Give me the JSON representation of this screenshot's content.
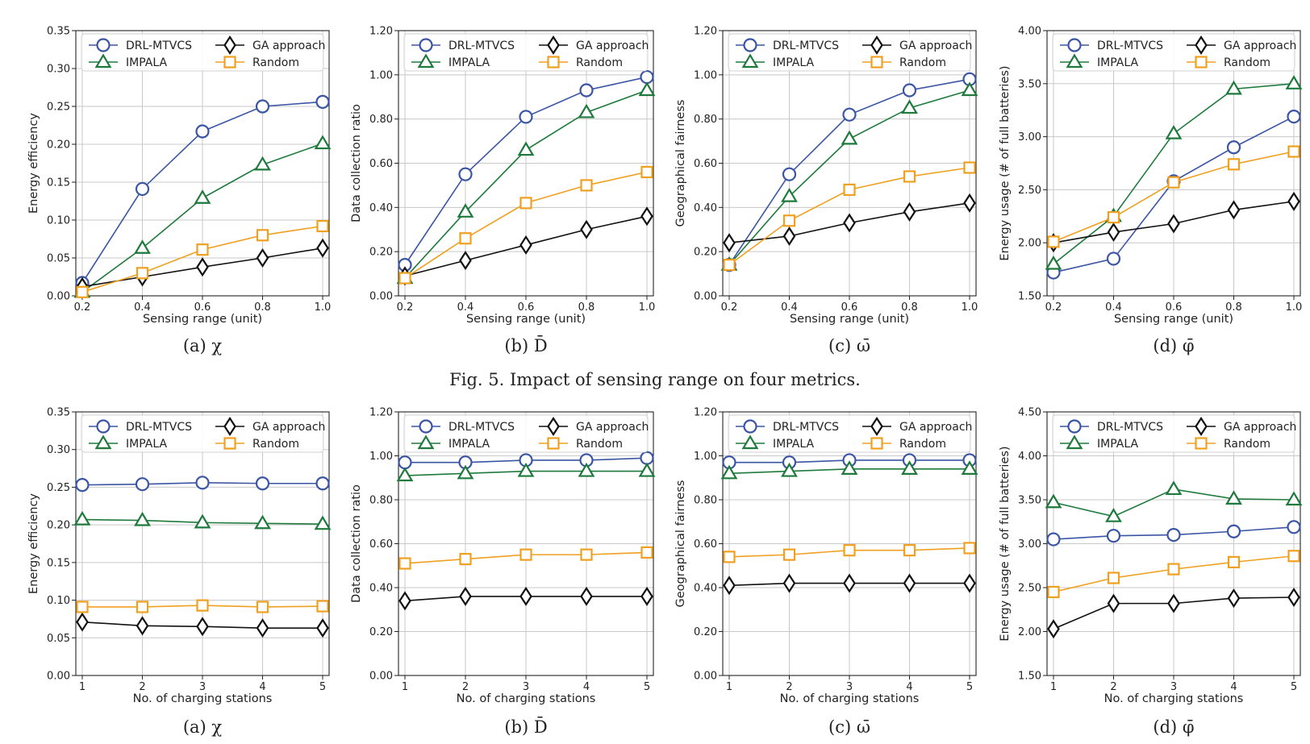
{
  "colors": {
    "DRL-MTVCS": "#3a55a4",
    "IMPALA": "#1e7a3c",
    "GA approach": "#111111",
    "Random": "#f0a020",
    "grid": "#c8c8c8"
  },
  "figure_caption": "Fig. 5.  Impact of sensing range on four metrics.",
  "chart_data": [
    {
      "type": "line",
      "subcaption": "(a) χ",
      "xlabel": "Sensing range (unit)",
      "ylabel": "Energy efficiency",
      "x": [
        "0.2",
        "0.4",
        "0.6",
        "0.8",
        "1.0"
      ],
      "ylim": [
        0,
        0.35
      ],
      "yticks": [
        "0.00",
        "0.05",
        "0.10",
        "0.15",
        "0.20",
        "0.25",
        "0.30",
        "0.35"
      ],
      "series": [
        {
          "name": "DRL-MTVCS",
          "marker": "circle",
          "values": [
            0.017,
            0.141,
            0.217,
            0.25,
            0.256
          ]
        },
        {
          "name": "IMPALA",
          "marker": "triangle",
          "values": [
            0.005,
            0.063,
            0.129,
            0.173,
            0.201
          ]
        },
        {
          "name": "GA approach",
          "marker": "diamond",
          "values": [
            0.012,
            0.025,
            0.038,
            0.05,
            0.063
          ]
        },
        {
          "name": "Random",
          "marker": "square",
          "values": [
            0.005,
            0.03,
            0.061,
            0.08,
            0.092
          ]
        }
      ]
    },
    {
      "type": "line",
      "subcaption": "(b) D̄",
      "xlabel": "Sensing range (unit)",
      "ylabel": "Data collection ratio",
      "x": [
        "0.2",
        "0.4",
        "0.6",
        "0.8",
        "1.0"
      ],
      "ylim": [
        0,
        1.2
      ],
      "yticks": [
        "0.00",
        "0.20",
        "0.40",
        "0.60",
        "0.80",
        "1.00",
        "1.20"
      ],
      "series": [
        {
          "name": "DRL-MTVCS",
          "marker": "circle",
          "values": [
            0.14,
            0.55,
            0.81,
            0.93,
            0.99
          ]
        },
        {
          "name": "IMPALA",
          "marker": "triangle",
          "values": [
            0.08,
            0.38,
            0.66,
            0.83,
            0.93
          ]
        },
        {
          "name": "GA approach",
          "marker": "diamond",
          "values": [
            0.09,
            0.16,
            0.23,
            0.3,
            0.36
          ]
        },
        {
          "name": "Random",
          "marker": "square",
          "values": [
            0.08,
            0.26,
            0.42,
            0.5,
            0.56
          ]
        }
      ]
    },
    {
      "type": "line",
      "subcaption": "(c) ω̄",
      "xlabel": "Sensing range (unit)",
      "ylabel": "Geographical fairness",
      "x": [
        "0.2",
        "0.4",
        "0.6",
        "0.8",
        "1.0"
      ],
      "ylim": [
        0,
        1.2
      ],
      "yticks": [
        "0.00",
        "0.20",
        "0.40",
        "0.60",
        "0.80",
        "1.00",
        "1.20"
      ],
      "series": [
        {
          "name": "DRL-MTVCS",
          "marker": "circle",
          "values": [
            0.14,
            0.55,
            0.82,
            0.93,
            0.98
          ]
        },
        {
          "name": "IMPALA",
          "marker": "triangle",
          "values": [
            0.14,
            0.45,
            0.71,
            0.85,
            0.93
          ]
        },
        {
          "name": "GA approach",
          "marker": "diamond",
          "values": [
            0.24,
            0.27,
            0.33,
            0.38,
            0.42
          ]
        },
        {
          "name": "Random",
          "marker": "square",
          "values": [
            0.14,
            0.34,
            0.48,
            0.54,
            0.58
          ]
        }
      ]
    },
    {
      "type": "line",
      "subcaption": "(d) φ̄",
      "xlabel": "Sensing range (unit)",
      "ylabel": "Energy usage (# of full batteries)",
      "x": [
        "0.2",
        "0.4",
        "0.6",
        "0.8",
        "1.0"
      ],
      "ylim": [
        1.5,
        4.0
      ],
      "yticks": [
        "1.50",
        "2.00",
        "2.50",
        "3.00",
        "3.50",
        "4.00"
      ],
      "series": [
        {
          "name": "DRL-MTVCS",
          "marker": "circle",
          "values": [
            1.72,
            1.85,
            2.58,
            2.9,
            3.19
          ]
        },
        {
          "name": "IMPALA",
          "marker": "triangle",
          "values": [
            1.8,
            2.25,
            3.03,
            3.45,
            3.5
          ]
        },
        {
          "name": "GA approach",
          "marker": "diamond",
          "values": [
            2.0,
            2.1,
            2.18,
            2.31,
            2.39
          ]
        },
        {
          "name": "Random",
          "marker": "square",
          "values": [
            2.01,
            2.24,
            2.57,
            2.74,
            2.86
          ]
        }
      ]
    },
    {
      "type": "line",
      "subcaption": "(a) χ",
      "xlabel": "No. of charging stations",
      "ylabel": "Energy efficiency",
      "x": [
        "1",
        "2",
        "3",
        "4",
        "5"
      ],
      "ylim": [
        0,
        0.35
      ],
      "yticks": [
        "0.00",
        "0.05",
        "0.10",
        "0.15",
        "0.20",
        "0.25",
        "0.30",
        "0.35"
      ],
      "series": [
        {
          "name": "DRL-MTVCS",
          "marker": "circle",
          "values": [
            0.253,
            0.254,
            0.256,
            0.255,
            0.255
          ]
        },
        {
          "name": "IMPALA",
          "marker": "triangle",
          "values": [
            0.207,
            0.206,
            0.203,
            0.202,
            0.201
          ]
        },
        {
          "name": "GA approach",
          "marker": "diamond",
          "values": [
            0.071,
            0.066,
            0.065,
            0.063,
            0.063
          ]
        },
        {
          "name": "Random",
          "marker": "square",
          "values": [
            0.091,
            0.091,
            0.093,
            0.091,
            0.092
          ]
        }
      ]
    },
    {
      "type": "line",
      "subcaption": "(b) D̄",
      "xlabel": "No. of charging stations",
      "ylabel": "Data collection ratio",
      "x": [
        "1",
        "2",
        "3",
        "4",
        "5"
      ],
      "ylim": [
        0,
        1.2
      ],
      "yticks": [
        "0.00",
        "0.20",
        "0.40",
        "0.60",
        "0.80",
        "1.00",
        "1.20"
      ],
      "series": [
        {
          "name": "DRL-MTVCS",
          "marker": "circle",
          "values": [
            0.97,
            0.97,
            0.98,
            0.98,
            0.99
          ]
        },
        {
          "name": "IMPALA",
          "marker": "triangle",
          "values": [
            0.91,
            0.92,
            0.93,
            0.93,
            0.93
          ]
        },
        {
          "name": "GA approach",
          "marker": "diamond",
          "values": [
            0.34,
            0.36,
            0.36,
            0.36,
            0.36
          ]
        },
        {
          "name": "Random",
          "marker": "square",
          "values": [
            0.51,
            0.53,
            0.55,
            0.55,
            0.56
          ]
        }
      ]
    },
    {
      "type": "line",
      "subcaption": "(c) ω̄",
      "xlabel": "No. of charging stations",
      "ylabel": "Geographical fairness",
      "x": [
        "1",
        "2",
        "3",
        "4",
        "5"
      ],
      "ylim": [
        0,
        1.2
      ],
      "yticks": [
        "0.00",
        "0.20",
        "0.40",
        "0.60",
        "0.80",
        "1.00",
        "1.20"
      ],
      "series": [
        {
          "name": "DRL-MTVCS",
          "marker": "circle",
          "values": [
            0.97,
            0.97,
            0.98,
            0.98,
            0.98
          ]
        },
        {
          "name": "IMPALA",
          "marker": "triangle",
          "values": [
            0.92,
            0.93,
            0.94,
            0.94,
            0.94
          ]
        },
        {
          "name": "GA approach",
          "marker": "diamond",
          "values": [
            0.41,
            0.42,
            0.42,
            0.42,
            0.42
          ]
        },
        {
          "name": "Random",
          "marker": "square",
          "values": [
            0.54,
            0.55,
            0.57,
            0.57,
            0.58
          ]
        }
      ]
    },
    {
      "type": "line",
      "subcaption": "(d) φ̄",
      "xlabel": "No. of charging stations",
      "ylabel": "Energy usage (# of full batteries)",
      "x": [
        "1",
        "2",
        "3",
        "4",
        "5"
      ],
      "ylim": [
        1.5,
        4.5
      ],
      "yticks": [
        "1.50",
        "2.00",
        "2.50",
        "3.00",
        "3.50",
        "4.00",
        "4.50"
      ],
      "series": [
        {
          "name": "DRL-MTVCS",
          "marker": "circle",
          "values": [
            3.05,
            3.09,
            3.1,
            3.14,
            3.19
          ]
        },
        {
          "name": "IMPALA",
          "marker": "triangle",
          "values": [
            3.47,
            3.31,
            3.62,
            3.51,
            3.5
          ]
        },
        {
          "name": "GA approach",
          "marker": "diamond",
          "values": [
            2.03,
            2.32,
            2.32,
            2.38,
            2.39
          ]
        },
        {
          "name": "Random",
          "marker": "square",
          "values": [
            2.45,
            2.61,
            2.71,
            2.79,
            2.86
          ]
        }
      ]
    }
  ]
}
